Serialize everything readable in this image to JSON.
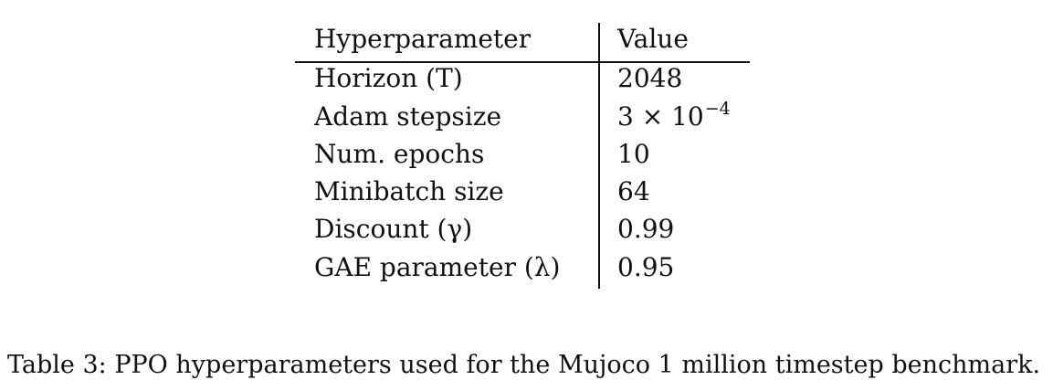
{
  "table": {
    "headers": {
      "parameter": "Hyperparameter",
      "value": "Value"
    },
    "rows": [
      {
        "parameter": "Horizon (T)",
        "value": "2048",
        "value_exponent": ""
      },
      {
        "parameter": "Adam stepsize",
        "value": "3 × 10",
        "value_exponent": "−4"
      },
      {
        "parameter": "Num. epochs",
        "value": "10",
        "value_exponent": ""
      },
      {
        "parameter": "Minibatch size",
        "value": "64",
        "value_exponent": ""
      },
      {
        "parameter": "Discount (γ)",
        "value": "0.99",
        "value_exponent": ""
      },
      {
        "parameter": "GAE parameter (λ)",
        "value": "0.95",
        "value_exponent": ""
      }
    ]
  },
  "caption": "Table 3: PPO hyperparameters used for the Mujoco 1 million timestep benchmark."
}
